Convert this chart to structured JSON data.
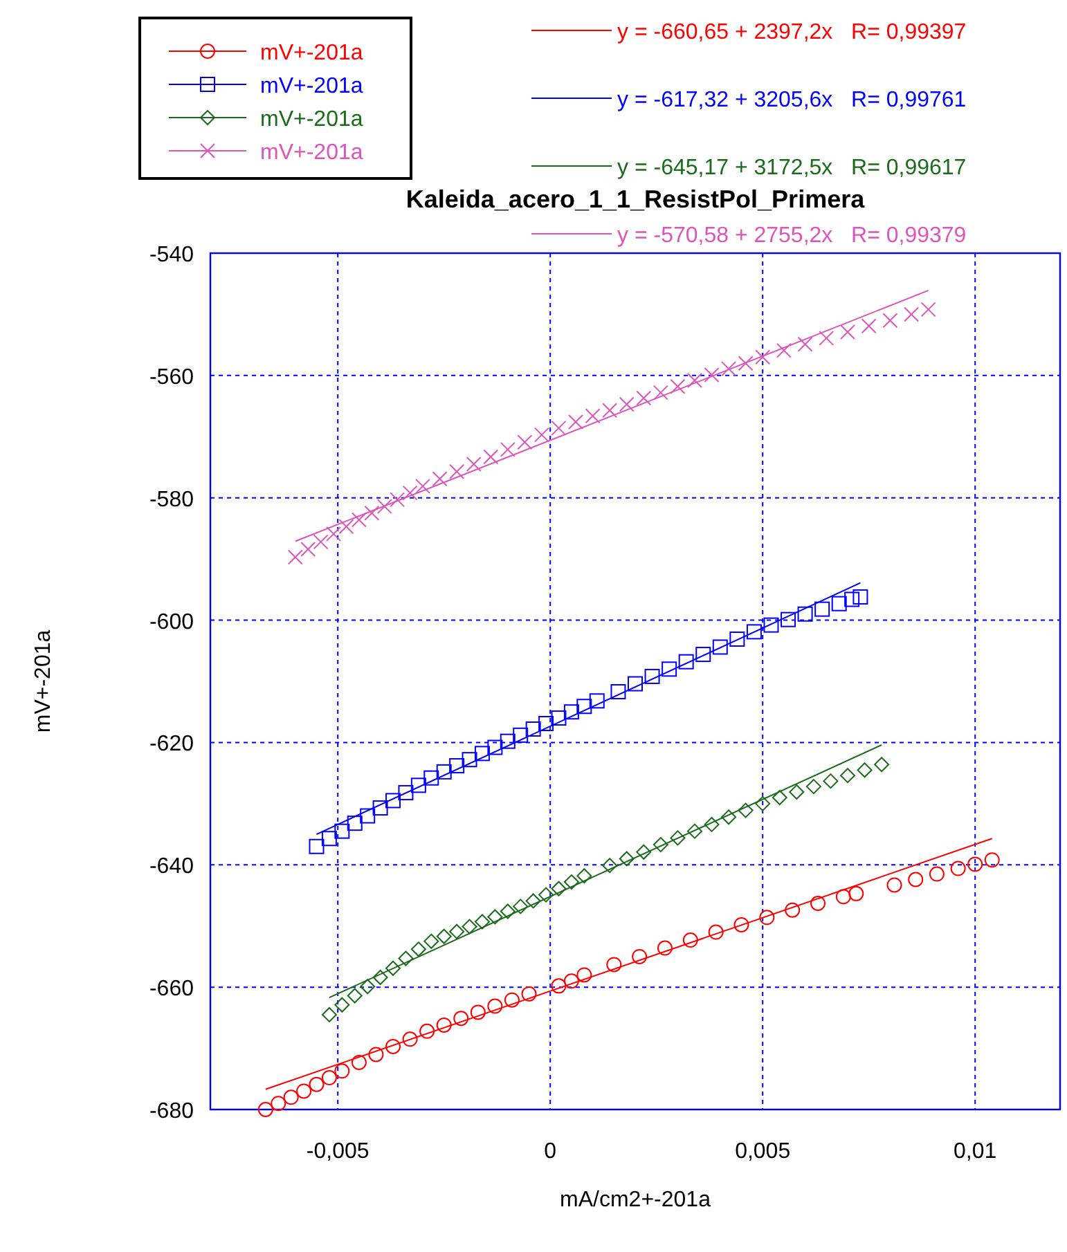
{
  "chart_data": {
    "type": "scatter",
    "title": "Kaleida_acero_1_1_ResistPol_Primera",
    "xlabel": "mA/cm2+-201a",
    "ylabel": "mV+-201a",
    "xlim": [
      -0.008,
      0.012
    ],
    "ylim": [
      -680,
      -540
    ],
    "xticks": [
      {
        "value": -0.005,
        "label": "-0,005"
      },
      0,
      {
        "value": 0.005,
        "label": "0,005"
      },
      {
        "value": 0.01,
        "label": "0,01"
      }
    ],
    "yticks": [
      -680,
      -660,
      -640,
      -620,
      -600,
      -580,
      -560,
      -540
    ],
    "grid": true,
    "legend": "top",
    "series": [
      {
        "name": "mV+-201a",
        "color": "#ff0000",
        "marker": "circle",
        "x": [
          -0.0067,
          -0.0064,
          -0.0061,
          -0.0058,
          -0.0055,
          -0.0052,
          -0.0049,
          -0.0045,
          -0.0041,
          -0.0037,
          -0.0033,
          -0.0029,
          -0.0025,
          -0.0021,
          -0.0017,
          -0.0013,
          -0.0009,
          -0.0005,
          0.0002,
          0.0005,
          0.0008,
          0.0015,
          0.0021,
          0.0027,
          0.0033,
          0.0039,
          0.0045,
          0.0051,
          0.0057,
          0.0063,
          0.0069,
          0.0072,
          0.0081,
          0.0086,
          0.0091,
          0.0096,
          0.01,
          0.0104
        ],
        "values": [
          -680,
          -679.0,
          -678.0,
          -677.0,
          -675.9,
          -674.8,
          -673.7,
          -672.3,
          -671.0,
          -669.7,
          -668.5,
          -667.2,
          -666.2,
          -665.1,
          -664.1,
          -663.1,
          -662.1,
          -661.1,
          -659.8,
          -659.0,
          -658.0,
          -656.3,
          -655.0,
          -653.6,
          -652.3,
          -651.0,
          -649.8,
          -648.6,
          -647.4,
          -646.3,
          -645.2,
          -644.7,
          -643.3,
          -642.4,
          -641.5,
          -640.6,
          -639.9,
          -639.2
        ]
      },
      {
        "name": "mV+-201a",
        "color": "#0000ff",
        "marker": "square",
        "x": [
          -0.0055,
          -0.0052,
          -0.0049,
          -0.0046,
          -0.0043,
          -0.004,
          -0.0037,
          -0.0034,
          -0.0031,
          -0.0028,
          -0.0025,
          -0.0022,
          -0.0019,
          -0.0016,
          -0.0013,
          -0.001,
          -0.0007,
          -0.0004,
          -0.0001,
          0.0002,
          0.0005,
          0.0008,
          0.0011,
          0.0016,
          0.002,
          0.0024,
          0.0028,
          0.0032,
          0.0036,
          0.004,
          0.0044,
          0.0048,
          0.0052,
          0.0056,
          0.006,
          0.0064,
          0.0068,
          0.0071,
          0.0073
        ],
        "values": [
          -637.0,
          -635.7,
          -634.5,
          -633.2,
          -632.0,
          -630.7,
          -629.5,
          -628.2,
          -627.0,
          -625.8,
          -624.8,
          -623.8,
          -622.8,
          -621.8,
          -620.8,
          -619.8,
          -618.8,
          -617.8,
          -616.9,
          -616.0,
          -615.0,
          -614.1,
          -613.2,
          -611.7,
          -610.4,
          -609.2,
          -608.0,
          -606.8,
          -605.6,
          -604.4,
          -603.1,
          -601.9,
          -600.8,
          -599.9,
          -599.0,
          -598.2,
          -597.3,
          -596.6,
          -596.2
        ]
      },
      {
        "name": "mV+-201a",
        "color": "#1a6b1a",
        "marker": "diamond",
        "x": [
          -0.0052,
          -0.0049,
          -0.0046,
          -0.0043,
          -0.004,
          -0.0037,
          -0.0034,
          -0.0031,
          -0.0028,
          -0.0025,
          -0.0022,
          -0.0019,
          -0.0016,
          -0.0013,
          -0.001,
          -0.0007,
          -0.0004,
          -0.0001,
          0.0002,
          0.0005,
          0.0008,
          0.0014,
          0.0018,
          0.0022,
          0.0026,
          0.003,
          0.0034,
          0.0038,
          0.0042,
          0.0046,
          0.005,
          0.0054,
          0.0058,
          0.0062,
          0.0066,
          0.007,
          0.0074,
          0.0078
        ],
        "values": [
          -664.5,
          -662.9,
          -661.4,
          -659.9,
          -658.4,
          -656.9,
          -655.3,
          -653.8,
          -652.5,
          -651.7,
          -650.9,
          -650.1,
          -649.3,
          -648.5,
          -647.6,
          -646.8,
          -645.9,
          -644.9,
          -643.9,
          -642.8,
          -641.8,
          -640.1,
          -639.0,
          -637.9,
          -636.7,
          -635.6,
          -634.5,
          -633.4,
          -632.2,
          -631.1,
          -630.0,
          -629.0,
          -628.1,
          -627.2,
          -626.3,
          -625.4,
          -624.5,
          -623.6
        ]
      },
      {
        "name": "mV+-201a",
        "color": "#dd55bb",
        "marker": "cross",
        "x": [
          -0.006,
          -0.0057,
          -0.0054,
          -0.0051,
          -0.0048,
          -0.0045,
          -0.0042,
          -0.0039,
          -0.0036,
          -0.0033,
          -0.003,
          -0.0026,
          -0.0022,
          -0.0018,
          -0.0014,
          -0.001,
          -0.0006,
          -0.0002,
          0.0002,
          0.0006,
          0.001,
          0.0014,
          0.0018,
          0.0022,
          0.0026,
          0.003,
          0.0034,
          0.0038,
          0.0042,
          0.0046,
          0.005,
          0.0055,
          0.006,
          0.0065,
          0.007,
          0.0075,
          0.008,
          0.0085,
          0.0089
        ],
        "values": [
          -589.7,
          -588.4,
          -587.2,
          -585.9,
          -584.7,
          -583.6,
          -582.5,
          -581.4,
          -580.3,
          -579.2,
          -578.1,
          -576.9,
          -575.7,
          -574.5,
          -573.3,
          -572.1,
          -570.9,
          -569.7,
          -568.6,
          -567.6,
          -566.6,
          -565.7,
          -564.7,
          -563.7,
          -562.8,
          -561.8,
          -560.8,
          -559.9,
          -558.9,
          -558.0,
          -557.0,
          -555.9,
          -554.9,
          -553.9,
          -552.9,
          -551.9,
          -551.0,
          -550.0,
          -549.2
        ]
      },
      {
        "type": "line",
        "name": "y = -660,65 + 2397,2x   R= 0,99397",
        "color": "#ff0000",
        "marker": "none",
        "x": [
          -0.0067,
          0.0104
        ],
        "values": [
          -676.7,
          -635.7
        ]
      },
      {
        "type": "line",
        "name": "y = -617,32 + 3205,6x   R= 0,99761",
        "color": "#0000ff",
        "marker": "none",
        "x": [
          -0.0055,
          0.0073
        ],
        "values": [
          -635.0,
          -593.9
        ]
      },
      {
        "type": "line",
        "name": "y = -645,17 + 3172,5x   R= 0,99617",
        "color": "#1a6b1a",
        "marker": "none",
        "x": [
          -0.0052,
          0.0078
        ],
        "values": [
          -661.7,
          -620.4
        ]
      },
      {
        "type": "line",
        "name": "y = -570,58 + 2755,2x   R= 0,99379",
        "color": "#dd55bb",
        "marker": "none",
        "x": [
          -0.006,
          0.0089
        ],
        "values": [
          -587.1,
          -546.1
        ]
      }
    ]
  }
}
